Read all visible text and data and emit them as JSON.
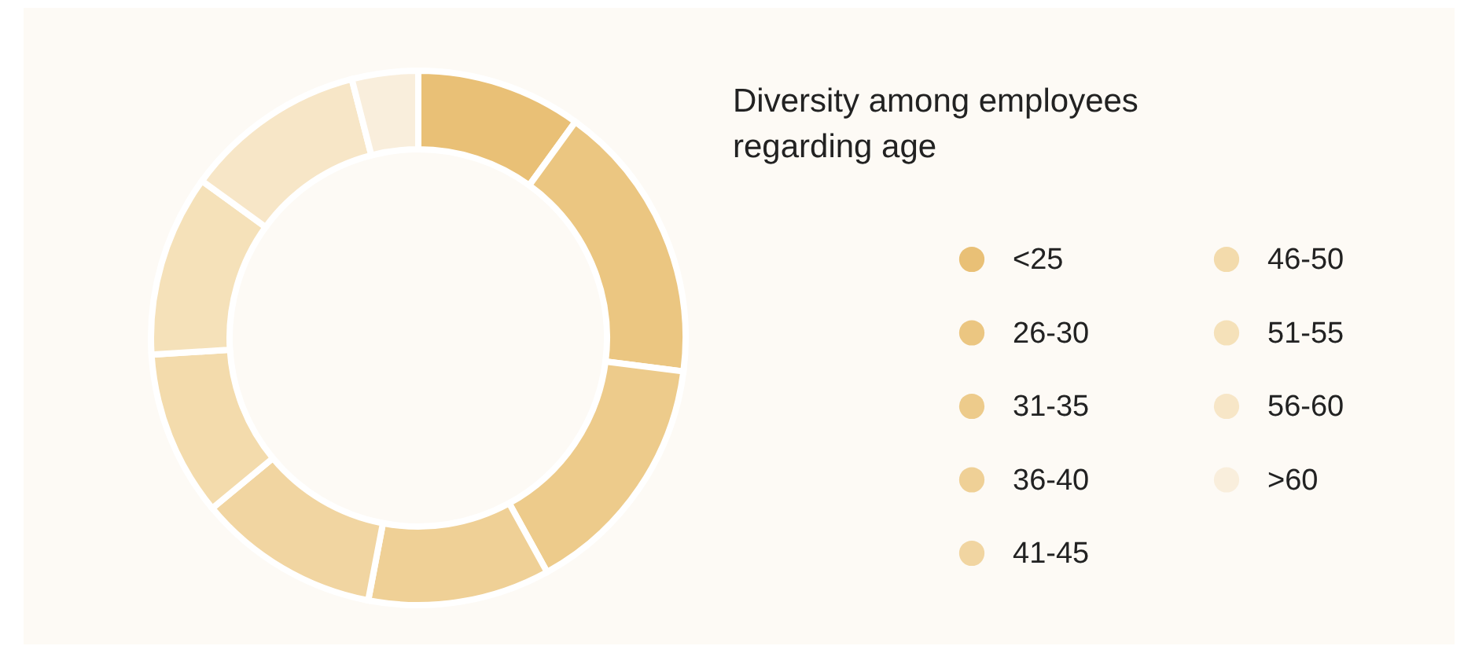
{
  "chart_data": {
    "type": "donut",
    "title": "Diversity among employees regarding age",
    "categories": [
      "<25",
      "26-30",
      "31-35",
      "36-40",
      "41-45",
      "46-50",
      "51-55",
      "56-60",
      ">60"
    ],
    "values": [
      10,
      17,
      15,
      11,
      11,
      10,
      11,
      11,
      4
    ],
    "colors": [
      "#e9c076",
      "#ebc681",
      "#edcb8b",
      "#efd096",
      "#f1d5a1",
      "#f3dbac",
      "#f5e1b9",
      "#f7e6c7",
      "#f9eedc"
    ],
    "legend": "right"
  }
}
